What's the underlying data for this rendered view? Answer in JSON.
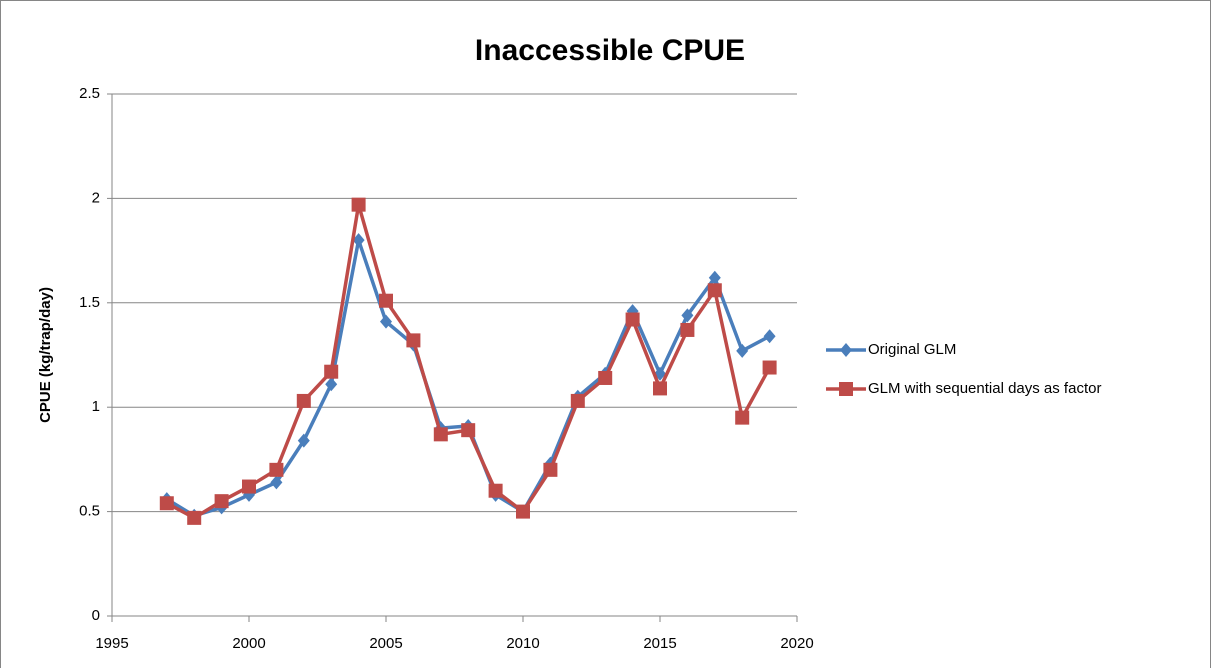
{
  "chart_data": {
    "type": "line",
    "title": "Inaccessible CPUE",
    "y_label": "CPUE (kg/trap/day)",
    "x": [
      1997,
      1998,
      1999,
      2000,
      2001,
      2002,
      2003,
      2004,
      2005,
      2006,
      2007,
      2008,
      2009,
      2010,
      2011,
      2012,
      2013,
      2014,
      2015,
      2016,
      2017,
      2018,
      2019
    ],
    "series": [
      {
        "name": "Original GLM",
        "color": "#4a7ebb",
        "marker": "diamond",
        "values": [
          0.56,
          0.48,
          0.52,
          0.58,
          0.64,
          0.84,
          1.11,
          1.8,
          1.41,
          1.3,
          0.9,
          0.91,
          0.58,
          0.5,
          0.73,
          1.05,
          1.16,
          1.46,
          1.16,
          1.44,
          1.62,
          1.27,
          1.34
        ]
      },
      {
        "name": "GLM with sequential days as factor",
        "color": "#be4b48",
        "marker": "square",
        "values": [
          0.54,
          0.47,
          0.55,
          0.62,
          0.7,
          1.03,
          1.17,
          1.97,
          1.51,
          1.32,
          0.87,
          0.89,
          0.6,
          0.5,
          0.7,
          1.03,
          1.14,
          1.42,
          1.09,
          1.37,
          1.56,
          0.95,
          1.19
        ]
      }
    ],
    "xlim": [
      1995,
      2020
    ],
    "xticks": [
      1995,
      2000,
      2005,
      2010,
      2015,
      2020
    ],
    "ylim": [
      0,
      2.5
    ],
    "yticks": [
      0,
      0.5,
      1,
      1.5,
      2,
      2.5
    ],
    "grid": true,
    "legend": "right"
  }
}
